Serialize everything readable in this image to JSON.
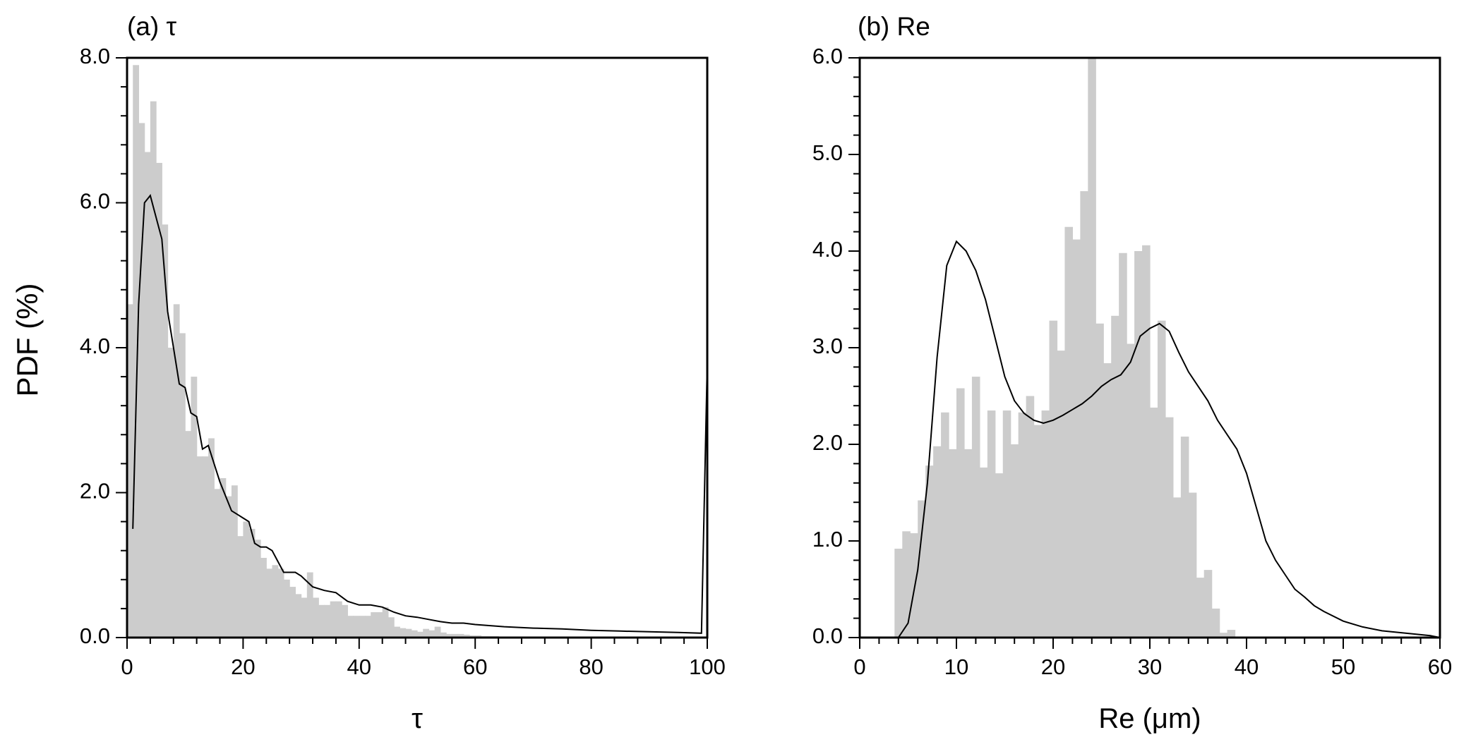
{
  "figure": {
    "ylabel": "PDF  (%)"
  },
  "chart_data": [
    {
      "type": "bar",
      "title": "(a) τ",
      "xlabel": "τ",
      "ylabel": "PDF  (%)",
      "xlim": [
        0,
        100
      ],
      "ylim": [
        0,
        8
      ],
      "xticks": [
        0,
        20,
        40,
        60,
        80,
        100
      ],
      "xtick_labels": [
        "0",
        "20",
        "40",
        "60",
        "80",
        "100"
      ],
      "yticks": [
        0,
        2,
        4,
        6,
        8
      ],
      "ytick_labels": [
        "0.0",
        "2.0",
        "4.0",
        "6.0",
        "8.0"
      ],
      "bar_width": 1,
      "bar_color": "#cccccc",
      "bars": {
        "x": [
          0,
          1,
          2,
          3,
          4,
          5,
          6,
          7,
          8,
          9,
          10,
          11,
          12,
          13,
          14,
          15,
          16,
          17,
          18,
          19,
          20,
          21,
          22,
          23,
          24,
          25,
          26,
          27,
          28,
          29,
          30,
          31,
          32,
          33,
          34,
          35,
          36,
          37,
          38,
          39,
          40,
          41,
          42,
          43,
          44,
          45,
          46,
          47,
          48,
          49,
          50,
          51,
          52,
          53,
          54,
          55,
          56,
          57,
          58,
          59,
          60,
          61,
          62,
          63,
          64,
          65,
          66,
          67,
          68,
          69,
          70
        ],
        "values": [
          4.6,
          7.9,
          7.1,
          6.7,
          7.4,
          6.55,
          5.7,
          4.0,
          4.6,
          4.2,
          2.85,
          3.6,
          2.5,
          2.5,
          2.75,
          2.05,
          2.2,
          1.95,
          2.1,
          1.4,
          1.6,
          1.5,
          1.35,
          1.1,
          0.95,
          1.0,
          0.95,
          0.8,
          0.7,
          0.6,
          0.55,
          0.9,
          0.55,
          0.45,
          0.45,
          0.5,
          0.5,
          0.45,
          0.3,
          0.3,
          0.3,
          0.3,
          0.35,
          0.35,
          0.42,
          0.28,
          0.15,
          0.13,
          0.12,
          0.1,
          0.08,
          0.12,
          0.1,
          0.15,
          0.07,
          0.05,
          0.05,
          0.05,
          0.04,
          0.03,
          0.03,
          0.02,
          0.02,
          0.02,
          0.01,
          0.01,
          0.01,
          0.01,
          0.01,
          0.01,
          0.01
        ]
      },
      "line": {
        "x": [
          1,
          2,
          3,
          4,
          5,
          6,
          7,
          8,
          9,
          10,
          11,
          12,
          13,
          14,
          15,
          16,
          17,
          18,
          19,
          20,
          21,
          22,
          23,
          24,
          25,
          26,
          27,
          28,
          29,
          30,
          32,
          34,
          36,
          38,
          40,
          42,
          44,
          46,
          48,
          50,
          52,
          54,
          56,
          58,
          60,
          65,
          70,
          75,
          80,
          85,
          90,
          95,
          99,
          100
        ],
        "y": [
          1.5,
          4.6,
          6.0,
          6.1,
          5.8,
          5.5,
          4.5,
          4.0,
          3.5,
          3.45,
          3.1,
          3.05,
          2.6,
          2.65,
          2.4,
          2.15,
          1.95,
          1.75,
          1.7,
          1.65,
          1.6,
          1.3,
          1.25,
          1.25,
          1.2,
          1.05,
          0.9,
          0.9,
          0.9,
          0.85,
          0.7,
          0.65,
          0.62,
          0.5,
          0.45,
          0.45,
          0.42,
          0.35,
          0.3,
          0.28,
          0.25,
          0.22,
          0.2,
          0.2,
          0.18,
          0.15,
          0.13,
          0.12,
          0.1,
          0.09,
          0.08,
          0.07,
          0.06,
          3.8
        ]
      }
    },
    {
      "type": "bar",
      "title": "(b) Re",
      "xlabel": "Re (μm)",
      "ylabel": "",
      "xlim": [
        0,
        60
      ],
      "ylim": [
        0,
        6
      ],
      "xticks": [
        0,
        10,
        20,
        30,
        40,
        50,
        60
      ],
      "xtick_labels": [
        "0",
        "10",
        "20",
        "30",
        "40",
        "50",
        "60"
      ],
      "yticks": [
        0,
        1,
        2,
        3,
        4,
        5,
        6
      ],
      "ytick_labels": [
        "0.0",
        "1.0",
        "2.0",
        "3.0",
        "4.0",
        "5.0",
        "6.0"
      ],
      "bar_width": 0.8,
      "bar_color": "#cccccc",
      "bars": {
        "x": [
          3.6,
          4.4,
          5.2,
          6.0,
          6.8,
          7.6,
          8.4,
          9.2,
          10.0,
          10.8,
          11.6,
          12.4,
          13.2,
          14.0,
          14.8,
          15.6,
          16.4,
          17.2,
          18.0,
          18.8,
          19.6,
          20.4,
          21.2,
          22.0,
          22.8,
          23.6,
          24.4,
          25.2,
          26.0,
          26.8,
          27.6,
          28.4,
          29.2,
          30.0,
          30.8,
          31.6,
          32.4,
          33.2,
          34.0,
          34.8,
          35.6,
          36.4,
          37.2,
          38.0,
          38.8,
          39.6,
          40.4,
          41.2,
          42.0,
          42.8
        ],
        "values": [
          0.92,
          1.1,
          1.08,
          1.42,
          1.78,
          1.98,
          2.33,
          1.95,
          2.58,
          1.95,
          2.7,
          1.76,
          2.35,
          1.7,
          2.35,
          2.0,
          2.33,
          2.5,
          2.2,
          2.35,
          3.28,
          2.97,
          4.25,
          4.12,
          4.62,
          6.0,
          3.25,
          2.84,
          3.33,
          3.98,
          3.04,
          4.0,
          4.06,
          2.38,
          3.28,
          2.28,
          1.45,
          2.08,
          1.5,
          0.62,
          0.7,
          0.3,
          0.05,
          0.08,
          0,
          0,
          0,
          0,
          0,
          0
        ]
      },
      "line": {
        "x": [
          4,
          5,
          6,
          7,
          8,
          9,
          10,
          11,
          12,
          13,
          14,
          15,
          16,
          17,
          18,
          19,
          20,
          21,
          22,
          23,
          24,
          25,
          26,
          27,
          28,
          29,
          30,
          31,
          32,
          33,
          34,
          35,
          36,
          37,
          38,
          39,
          40,
          41,
          42,
          43,
          44,
          45,
          46,
          47,
          48,
          50,
          52,
          54,
          56,
          58,
          59,
          60
        ],
        "y": [
          0.0,
          0.15,
          0.7,
          1.6,
          2.9,
          3.85,
          4.1,
          4.0,
          3.8,
          3.5,
          3.1,
          2.7,
          2.45,
          2.32,
          2.25,
          2.22,
          2.25,
          2.3,
          2.36,
          2.42,
          2.5,
          2.6,
          2.67,
          2.72,
          2.85,
          3.12,
          3.2,
          3.25,
          3.17,
          2.95,
          2.75,
          2.6,
          2.45,
          2.25,
          2.1,
          1.95,
          1.7,
          1.35,
          1.0,
          0.8,
          0.65,
          0.5,
          0.42,
          0.33,
          0.27,
          0.17,
          0.11,
          0.07,
          0.05,
          0.03,
          0.02,
          0.0
        ]
      }
    }
  ]
}
